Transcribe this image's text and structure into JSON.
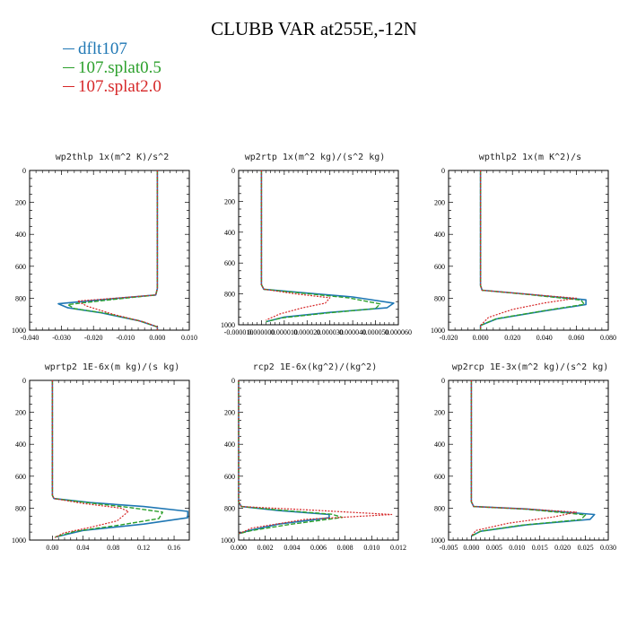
{
  "figure": {
    "title": "CLUBB VAR at255E,-12N",
    "legend": [
      {
        "label": "dflt107",
        "color": "#1f77b4"
      },
      {
        "label": "107.splat0.5",
        "color": "#2ca02c"
      },
      {
        "label": "107.splat2.0",
        "color": "#d62728"
      }
    ]
  },
  "chart_data": [
    {
      "type": "line",
      "title": "wp2thlp   1x(m^2 K)/s^2",
      "xlim": [
        -0.04,
        0.01
      ],
      "ylim": [
        1000,
        0
      ],
      "xticks": [
        -0.04,
        -0.03,
        -0.02,
        -0.01,
        0.0,
        0.01
      ],
      "xtick_labels": [
        "-0.040",
        "-0.030",
        "-0.020",
        "-0.010",
        "0.000",
        "0.010"
      ],
      "yticks": [
        0,
        200,
        400,
        600,
        800,
        1000
      ],
      "ytick_labels": [
        "0",
        "200",
        "400",
        "600",
        "800",
        "1000"
      ],
      "series": [
        {
          "name": "dflt107",
          "x": [
            0,
            0,
            -0.0005,
            -0.015,
            -0.031,
            -0.028,
            -0.018,
            -0.006,
            0,
            0
          ],
          "y": [
            0,
            740,
            780,
            805,
            835,
            860,
            890,
            940,
            980,
            1000
          ]
        },
        {
          "name": "107.splat0.5",
          "x": [
            0,
            0,
            -0.0005,
            -0.014,
            -0.028,
            -0.026,
            -0.016,
            -0.005,
            0,
            0
          ],
          "y": [
            0,
            740,
            780,
            808,
            840,
            865,
            895,
            945,
            980,
            1000
          ]
        },
        {
          "name": "107.splat2.0",
          "x": [
            0,
            0,
            -0.0005,
            -0.01,
            -0.025,
            -0.022,
            -0.014,
            -0.004,
            0,
            0
          ],
          "y": [
            0,
            740,
            780,
            795,
            818,
            850,
            900,
            950,
            980,
            1000
          ]
        }
      ]
    },
    {
      "type": "line",
      "title": "wp2rtp   1x(m^2 kg)/(s^2 kg)",
      "xlim": [
        -1e-05,
        6e-05
      ],
      "ylim": [
        1000,
        0
      ],
      "xticks": [
        -1e-05,
        0.0,
        1e-05,
        2e-05,
        3e-05,
        4e-05,
        5e-05,
        6e-05
      ],
      "xtick_labels": [
        "-0.000010",
        "0.000000",
        "0.000010",
        "0.000020",
        "0.000030",
        "0.000040",
        "0.000050",
        "0.000060"
      ],
      "yticks": [
        0,
        200,
        400,
        600,
        800,
        1000
      ],
      "ytick_labels": [
        "0",
        "200",
        "400",
        "600",
        "800",
        "1000"
      ],
      "series": [
        {
          "name": "dflt107",
          "x": [
            0,
            0,
            1e-06,
            2e-05,
            4e-05,
            5.8e-05,
            5.5e-05,
            3e-05,
            1e-05,
            2e-06
          ],
          "y": [
            0,
            740,
            770,
            795,
            820,
            860,
            890,
            920,
            950,
            980
          ]
        },
        {
          "name": "107.splat0.5",
          "x": [
            0,
            0,
            1e-06,
            2e-05,
            3.8e-05,
            5.2e-05,
            5e-05,
            2.8e-05,
            9e-06,
            2e-06
          ],
          "y": [
            0,
            740,
            770,
            798,
            825,
            865,
            895,
            925,
            955,
            980
          ]
        },
        {
          "name": "107.splat2.0",
          "x": [
            0,
            0,
            1e-06,
            1.5e-05,
            3e-05,
            2.8e-05,
            1.8e-05,
            8e-06,
            2e-06
          ],
          "y": [
            0,
            740,
            770,
            800,
            825,
            860,
            890,
            930,
            970
          ]
        }
      ]
    },
    {
      "type": "line",
      "title": "wpthlp2   1x(m K^2)/s",
      "xlim": [
        -0.02,
        0.08
      ],
      "ylim": [
        1000,
        0
      ],
      "xticks": [
        -0.02,
        0.0,
        0.02,
        0.04,
        0.06,
        0.08
      ],
      "xtick_labels": [
        "-0.020",
        "0.000",
        "0.020",
        "0.040",
        "0.060",
        "0.080"
      ],
      "yticks": [
        0,
        200,
        400,
        600,
        800,
        1000
      ],
      "ytick_labels": [
        "0",
        "200",
        "400",
        "600",
        "800",
        "1000"
      ],
      "series": [
        {
          "name": "dflt107",
          "x": [
            0,
            0,
            0.001,
            0.03,
            0.066,
            0.066,
            0.04,
            0.01,
            0,
            0
          ],
          "y": [
            0,
            720,
            750,
            775,
            810,
            840,
            880,
            930,
            970,
            1000
          ]
        },
        {
          "name": "107.splat0.5",
          "x": [
            0,
            0,
            0.001,
            0.03,
            0.063,
            0.065,
            0.04,
            0.01,
            0,
            0
          ],
          "y": [
            0,
            720,
            750,
            777,
            812,
            838,
            878,
            928,
            970,
            1000
          ]
        },
        {
          "name": "107.splat2.0",
          "x": [
            0,
            0,
            0.001,
            0.03,
            0.06,
            0.04,
            0.02,
            0.005,
            0,
            0
          ],
          "y": [
            0,
            720,
            750,
            775,
            800,
            830,
            870,
            920,
            970,
            1000
          ]
        }
      ]
    },
    {
      "type": "line",
      "title": "wprtp2   1E-6x(m kg)/(s kg)",
      "xlim": [
        -0.03,
        0.18
      ],
      "ylim": [
        1000,
        0
      ],
      "xticks": [
        0.0,
        0.04,
        0.08,
        0.12,
        0.16
      ],
      "xtick_labels": [
        "0.00",
        "0.04",
        "0.08",
        "0.12",
        "0.16"
      ],
      "yticks": [
        0,
        200,
        400,
        600,
        800,
        1000
      ],
      "ytick_labels": [
        "0",
        "200",
        "400",
        "600",
        "800",
        "1000"
      ],
      "series": [
        {
          "name": "dflt107",
          "x": [
            0,
            0,
            0.002,
            0.05,
            0.12,
            0.178,
            0.178,
            0.12,
            0.04,
            0.005
          ],
          "y": [
            0,
            720,
            740,
            765,
            790,
            820,
            860,
            900,
            940,
            980
          ]
        },
        {
          "name": "107.splat0.5",
          "x": [
            0,
            0,
            0.002,
            0.05,
            0.1,
            0.145,
            0.14,
            0.09,
            0.03,
            0.004
          ],
          "y": [
            0,
            720,
            740,
            768,
            795,
            825,
            865,
            905,
            945,
            980
          ]
        },
        {
          "name": "107.splat2.0",
          "x": [
            0,
            0,
            0.002,
            0.04,
            0.09,
            0.1,
            0.085,
            0.05,
            0.015,
            0.003
          ],
          "y": [
            0,
            720,
            740,
            770,
            800,
            820,
            880,
            920,
            955,
            985
          ]
        }
      ]
    },
    {
      "type": "line",
      "title": "rcp2   1E-6x(kg^2)/(kg^2)",
      "xlim": [
        0.0,
        0.012
      ],
      "ylim": [
        1000,
        0
      ],
      "xticks": [
        0.0,
        0.002,
        0.004,
        0.006,
        0.008,
        0.01,
        0.012
      ],
      "xtick_labels": [
        "0.000",
        "0.002",
        "0.004",
        "0.006",
        "0.008",
        "0.010",
        "0.012"
      ],
      "yticks": [
        0,
        200,
        400,
        600,
        800,
        1000
      ],
      "ytick_labels": [
        "0",
        "200",
        "400",
        "600",
        "800",
        "1000"
      ],
      "series": [
        {
          "name": "dflt107",
          "x": [
            0,
            0,
            0.0002,
            0.003,
            0.0068,
            0.0068,
            0.003,
            0.0008,
            0
          ],
          "y": [
            0,
            760,
            790,
            815,
            840,
            860,
            900,
            940,
            960
          ]
        },
        {
          "name": "107.splat0.5",
          "x": [
            0,
            0,
            0.0002,
            0.003,
            0.007,
            0.0078,
            0.004,
            0.001,
            0
          ],
          "y": [
            0,
            760,
            790,
            812,
            838,
            858,
            900,
            940,
            960
          ]
        },
        {
          "name": "107.splat2.0",
          "x": [
            0,
            0,
            0.0002,
            0.005,
            0.0115,
            0.005,
            0.001,
            0
          ],
          "y": [
            0,
            760,
            790,
            810,
            840,
            870,
            925,
            960
          ]
        }
      ]
    },
    {
      "type": "line",
      "title": "wp2rcp   1E-3x(m^2 kg)/(s^2 kg)",
      "xlim": [
        -0.005,
        0.03
      ],
      "ylim": [
        1000,
        0
      ],
      "xticks": [
        -0.005,
        0.0,
        0.005,
        0.01,
        0.015,
        0.02,
        0.025,
        0.03
      ],
      "xtick_labels": [
        "-0.005",
        "0.000",
        "0.005",
        "0.010",
        "0.015",
        "0.020",
        "0.025",
        "0.030"
      ],
      "yticks": [
        0,
        200,
        400,
        600,
        800,
        1000
      ],
      "ytick_labels": [
        "0",
        "200",
        "400",
        "600",
        "800",
        "1000"
      ],
      "series": [
        {
          "name": "dflt107",
          "x": [
            0,
            0,
            0.0005,
            0.012,
            0.027,
            0.026,
            0.012,
            0.002,
            0
          ],
          "y": [
            0,
            760,
            790,
            805,
            840,
            870,
            905,
            945,
            975
          ]
        },
        {
          "name": "107.splat0.5",
          "x": [
            0,
            0,
            0.0005,
            0.012,
            0.025,
            0.024,
            0.011,
            0.002,
            0
          ],
          "y": [
            0,
            760,
            790,
            807,
            842,
            872,
            907,
            945,
            975
          ]
        },
        {
          "name": "107.splat2.0",
          "x": [
            0,
            0,
            0.0005,
            0.012,
            0.023,
            0.018,
            0.008,
            0.001,
            0
          ],
          "y": [
            0,
            760,
            790,
            805,
            825,
            855,
            895,
            940,
            975
          ]
        }
      ]
    }
  ]
}
